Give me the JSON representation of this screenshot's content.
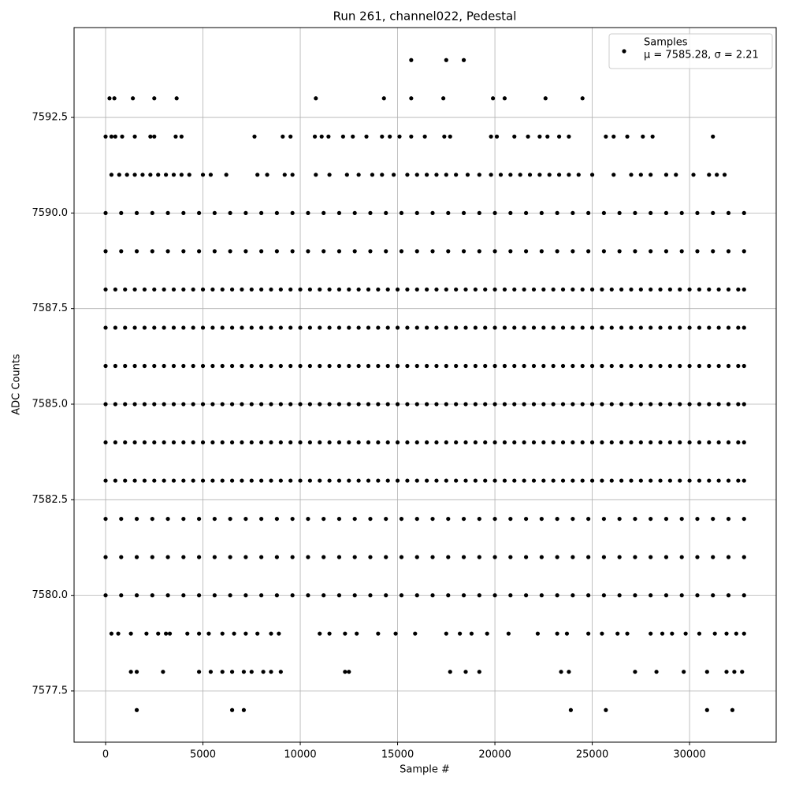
{
  "chart_data": {
    "type": "scatter",
    "title": "Run 261, channel022, Pedestal",
    "x_label": "Sample #",
    "y_label": "ADC Counts",
    "xlim": [
      -1620,
      34450
    ],
    "ylim": [
      7576.16,
      7594.85
    ],
    "xticks": [
      0,
      5000,
      10000,
      15000,
      20000,
      25000,
      30000
    ],
    "yticks": [
      7577.5,
      {
        "value": 7580,
        "label": "7580.0"
      },
      7582.5,
      {
        "value": 7585,
        "label": "7585.0"
      },
      7587.5,
      {
        "value": 7590,
        "label": "7590.0"
      },
      7592.5
    ],
    "grid": true,
    "legend": "upper right",
    "legend_stats": "μ = 7585.28, σ = 2.21",
    "series": [
      {
        "name": "Samples",
        "color": "#000000",
        "groups": [
          {
            "y": 7594,
            "x": [
              15700,
              17500,
              18400
            ]
          },
          {
            "y": 7593,
            "x": [
              200,
              450,
              1400,
              2500,
              3650,
              10800,
              14300,
              15700,
              17350,
              19900,
              20500,
              22600,
              24500
            ]
          },
          {
            "y": 7592,
            "x": [
              0,
              300,
              500,
              850,
              1500,
              2300,
              2500,
              3600,
              3900,
              7650,
              9100,
              9500,
              10750,
              11100,
              11450,
              12200,
              12700,
              13400,
              14200,
              14600,
              15100,
              15700,
              16400,
              17400,
              17700,
              19800,
              20100,
              21000,
              21700,
              22300,
              22700,
              23300,
              23800,
              25700,
              26100,
              26800,
              27600,
              28100,
              31200
            ]
          },
          {
            "y": 7591,
            "x": [
              300,
              700,
              1100,
              1500,
              1900,
              2300,
              2700,
              3100,
              3500,
              3900,
              4300,
              5000,
              5400,
              6200,
              7800,
              8300,
              9200,
              9600,
              10800,
              11500,
              12400,
              13000,
              13700,
              14200,
              14800,
              15500,
              16000,
              16500,
              17000,
              17500,
              18000,
              18600,
              19200,
              19800,
              20300,
              20800,
              21300,
              21800,
              22300,
              22800,
              23300,
              23800,
              24300,
              25000,
              26100,
              27000,
              27500,
              28000,
              28800,
              29300,
              30200,
              31000,
              31400,
              31800
            ]
          },
          {
            "y": 7590,
            "x": [
              0,
              800,
              1600,
              2400,
              3200,
              4000,
              4800,
              5600,
              6400,
              7200,
              8000,
              8800,
              9600,
              10400,
              11200,
              12000,
              12800,
              13600,
              14400,
              15200,
              16000,
              16800,
              17600,
              18400,
              19200,
              20000,
              20800,
              21600,
              22400,
              23200,
              24000,
              24800,
              25600,
              26400,
              27200,
              28000,
              28800,
              29600,
              30400,
              31200,
              32000,
              32800
            ]
          },
          {
            "y": 7589,
            "x": [
              0,
              800,
              1600,
              2400,
              3200,
              4000,
              4800,
              5600,
              6400,
              7200,
              8000,
              8800,
              9600,
              10400,
              11200,
              12000,
              12800,
              13600,
              14400,
              15200,
              16000,
              16800,
              17600,
              18400,
              19200,
              20000,
              20800,
              21600,
              22400,
              23200,
              24000,
              24800,
              25600,
              26400,
              27200,
              28000,
              28800,
              29600,
              30400,
              31200,
              32000,
              32800
            ]
          },
          {
            "y": 7588,
            "x": [
              0,
              500,
              1000,
              1500,
              2000,
              2500,
              3000,
              3500,
              4000,
              4500,
              5000,
              5500,
              6000,
              6500,
              7000,
              7500,
              8000,
              8500,
              9000,
              9500,
              10000,
              10500,
              11000,
              11500,
              12000,
              12500,
              13000,
              13500,
              14000,
              14500,
              15000,
              15500,
              16000,
              16500,
              17000,
              17500,
              18000,
              18500,
              19000,
              19500,
              20000,
              20500,
              21000,
              21500,
              22000,
              22500,
              23000,
              23500,
              24000,
              24500,
              25000,
              25500,
              26000,
              26500,
              27000,
              27500,
              28000,
              28500,
              29000,
              29500,
              30000,
              30500,
              31000,
              31500,
              32000,
              32500,
              32800
            ]
          },
          {
            "y": 7587,
            "x": [
              0,
              500,
              1000,
              1500,
              2000,
              2500,
              3000,
              3500,
              4000,
              4500,
              5000,
              5500,
              6000,
              6500,
              7000,
              7500,
              8000,
              8500,
              9000,
              9500,
              10000,
              10500,
              11000,
              11500,
              12000,
              12500,
              13000,
              13500,
              14000,
              14500,
              15000,
              15500,
              16000,
              16500,
              17000,
              17500,
              18000,
              18500,
              19000,
              19500,
              20000,
              20500,
              21000,
              21500,
              22000,
              22500,
              23000,
              23500,
              24000,
              24500,
              25000,
              25500,
              26000,
              26500,
              27000,
              27500,
              28000,
              28500,
              29000,
              29500,
              30000,
              30500,
              31000,
              31500,
              32000,
              32500,
              32800
            ]
          },
          {
            "y": 7586,
            "x": [
              0,
              500,
              1000,
              1500,
              2000,
              2500,
              3000,
              3500,
              4000,
              4500,
              5000,
              5500,
              6000,
              6500,
              7000,
              7500,
              8000,
              8500,
              9000,
              9500,
              10000,
              10500,
              11000,
              11500,
              12000,
              12500,
              13000,
              13500,
              14000,
              14500,
              15000,
              15500,
              16000,
              16500,
              17000,
              17500,
              18000,
              18500,
              19000,
              19500,
              20000,
              20500,
              21000,
              21500,
              22000,
              22500,
              23000,
              23500,
              24000,
              24500,
              25000,
              25500,
              26000,
              26500,
              27000,
              27500,
              28000,
              28500,
              29000,
              29500,
              30000,
              30500,
              31000,
              31500,
              32000,
              32500,
              32800
            ]
          },
          {
            "y": 7585,
            "x": [
              0,
              500,
              1000,
              1500,
              2000,
              2500,
              3000,
              3500,
              4000,
              4500,
              5000,
              5500,
              6000,
              6500,
              7000,
              7500,
              8000,
              8500,
              9000,
              9500,
              10000,
              10500,
              11000,
              11500,
              12000,
              12500,
              13000,
              13500,
              14000,
              14500,
              15000,
              15500,
              16000,
              16500,
              17000,
              17500,
              18000,
              18500,
              19000,
              19500,
              20000,
              20500,
              21000,
              21500,
              22000,
              22500,
              23000,
              23500,
              24000,
              24500,
              25000,
              25500,
              26000,
              26500,
              27000,
              27500,
              28000,
              28500,
              29000,
              29500,
              30000,
              30500,
              31000,
              31500,
              32000,
              32500,
              32800
            ]
          },
          {
            "y": 7584,
            "x": [
              0,
              500,
              1000,
              1500,
              2000,
              2500,
              3000,
              3500,
              4000,
              4500,
              5000,
              5500,
              6000,
              6500,
              7000,
              7500,
              8000,
              8500,
              9000,
              9500,
              10000,
              10500,
              11000,
              11500,
              12000,
              12500,
              13000,
              13500,
              14000,
              14500,
              15000,
              15500,
              16000,
              16500,
              17000,
              17500,
              18000,
              18500,
              19000,
              19500,
              20000,
              20500,
              21000,
              21500,
              22000,
              22500,
              23000,
              23500,
              24000,
              24500,
              25000,
              25500,
              26000,
              26500,
              27000,
              27500,
              28000,
              28500,
              29000,
              29500,
              30000,
              30500,
              31000,
              31500,
              32000,
              32500,
              32800
            ]
          },
          {
            "y": 7583,
            "x": [
              0,
              500,
              1000,
              1500,
              2000,
              2500,
              3000,
              3500,
              4000,
              4500,
              5000,
              5500,
              6000,
              6500,
              7000,
              7500,
              8000,
              8500,
              9000,
              9500,
              10000,
              10500,
              11000,
              11500,
              12000,
              12500,
              13000,
              13500,
              14000,
              14500,
              15000,
              15500,
              16000,
              16500,
              17000,
              17500,
              18000,
              18500,
              19000,
              19500,
              20000,
              20500,
              21000,
              21500,
              22000,
              22500,
              23000,
              23500,
              24000,
              24500,
              25000,
              25500,
              26000,
              26500,
              27000,
              27500,
              28000,
              28500,
              29000,
              29500,
              30000,
              30500,
              31000,
              31500,
              32000,
              32500,
              32800
            ]
          },
          {
            "y": 7582,
            "x": [
              0,
              800,
              1600,
              2400,
              3200,
              4000,
              4800,
              5600,
              6400,
              7200,
              8000,
              8800,
              9600,
              10400,
              11200,
              12000,
              12800,
              13600,
              14400,
              15200,
              16000,
              16800,
              17600,
              18400,
              19200,
              20000,
              20800,
              21600,
              22400,
              23200,
              24000,
              24800,
              25600,
              26400,
              27200,
              28000,
              28800,
              29600,
              30400,
              31200,
              32000,
              32800
            ]
          },
          {
            "y": 7581,
            "x": [
              0,
              800,
              1600,
              2400,
              3200,
              4000,
              4800,
              5600,
              6400,
              7200,
              8000,
              8800,
              9600,
              10400,
              11200,
              12000,
              12800,
              13600,
              14400,
              15200,
              16000,
              16800,
              17600,
              18400,
              19200,
              20000,
              20800,
              21600,
              22400,
              23200,
              24000,
              24800,
              25600,
              26400,
              27200,
              28000,
              28800,
              29600,
              30400,
              31200,
              32000,
              32800
            ]
          },
          {
            "y": 7580,
            "x": [
              0,
              800,
              1600,
              2400,
              3200,
              4000,
              4800,
              5600,
              6400,
              7200,
              8000,
              8800,
              9600,
              10400,
              11200,
              12000,
              12800,
              13600,
              14400,
              15200,
              16000,
              16800,
              17600,
              18400,
              19200,
              20000,
              20800,
              21600,
              22400,
              23200,
              24000,
              24800,
              25600,
              26400,
              27200,
              28000,
              28800,
              29600,
              30400,
              31200,
              32000,
              32800
            ]
          },
          {
            "y": 7579,
            "x": [
              300,
              650,
              1300,
              2100,
              2700,
              3100,
              3300,
              4200,
              4800,
              5300,
              6000,
              6600,
              7200,
              7800,
              8500,
              8900,
              11000,
              11500,
              12300,
              12900,
              14000,
              14900,
              15900,
              17500,
              18200,
              18800,
              19600,
              20700,
              22200,
              23200,
              23700,
              24800,
              25500,
              26300,
              26800,
              28000,
              28600,
              29100,
              29800,
              30500,
              31300,
              31900,
              32400,
              32800
            ]
          },
          {
            "y": 7578,
            "x": [
              1300,
              1600,
              2950,
              4800,
              5400,
              6000,
              6500,
              7100,
              7500,
              8100,
              8500,
              9000,
              12300,
              12500,
              17700,
              18500,
              19200,
              23400,
              23800,
              27200,
              28300,
              29700,
              30900,
              31900,
              32300,
              32700
            ]
          },
          {
            "y": 7577,
            "x": [
              1600,
              6500,
              7100,
              23900,
              25700,
              30900,
              32200
            ]
          }
        ]
      }
    ]
  }
}
